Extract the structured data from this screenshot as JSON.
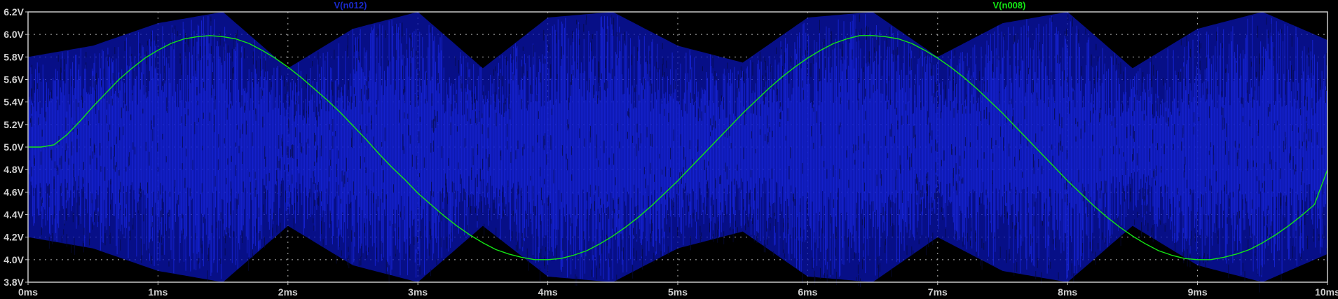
{
  "app": {
    "background_color": "#000000",
    "frame_color": "#c8c8c8",
    "grid_color": "#b4b4b4"
  },
  "chart_data": {
    "type": "line",
    "title": "",
    "xlabel": "",
    "ylabel": "",
    "x_unit": "ms",
    "y_unit": "V",
    "xlim": [
      0,
      10
    ],
    "ylim": [
      3.8,
      6.2
    ],
    "grid": true,
    "legend_placement": "top",
    "x_ticks": [
      0,
      1,
      2,
      3,
      4,
      5,
      6,
      7,
      8,
      9,
      10
    ],
    "x_tick_labels": [
      "0ms",
      "1ms",
      "2ms",
      "3ms",
      "4ms",
      "5ms",
      "6ms",
      "7ms",
      "8ms",
      "9ms",
      "10ms"
    ],
    "y_ticks": [
      3.8,
      4.0,
      4.2,
      4.4,
      4.6,
      4.8,
      5.0,
      5.2,
      5.4,
      5.6,
      5.8,
      6.0,
      6.2
    ],
    "y_tick_labels": [
      "3.8V",
      "4.0V",
      "4.2V",
      "4.4V",
      "4.6V",
      "4.8V",
      "5.0V",
      "5.2V",
      "5.4V",
      "5.6V",
      "5.8V",
      "6.0V",
      "6.2V"
    ],
    "series": [
      {
        "name": "V(n012)",
        "color": "#0a14b4",
        "label_color": "#1a2acc",
        "kind": "dense-oscillation",
        "envelope_ms": [
          0,
          0.5,
          1,
          1.5,
          2,
          2.5,
          3,
          3.5,
          4,
          4.5,
          5,
          5.5,
          6,
          6.5,
          7,
          7.5,
          8,
          8.5,
          9,
          9.5,
          10
        ],
        "envelope_max_v": [
          5.8,
          5.9,
          6.1,
          6.2,
          5.7,
          6.05,
          6.2,
          5.7,
          6.15,
          6.2,
          5.9,
          5.75,
          6.15,
          6.2,
          5.8,
          6.1,
          6.2,
          5.7,
          6.05,
          6.2,
          5.95
        ],
        "envelope_min_v": [
          4.2,
          4.1,
          3.9,
          3.8,
          4.3,
          3.95,
          3.8,
          4.3,
          3.85,
          3.8,
          4.1,
          4.25,
          3.85,
          3.8,
          4.2,
          3.9,
          3.8,
          4.3,
          3.95,
          3.8,
          4.05
        ]
      },
      {
        "name": "V(n008)",
        "color": "#14e614",
        "label_color": "#14e614",
        "kind": "line",
        "x": [
          0,
          0.1,
          0.2,
          0.3,
          0.4,
          0.5,
          0.6,
          0.7,
          0.8,
          0.9,
          1.0,
          1.1,
          1.2,
          1.3,
          1.4,
          1.5,
          1.6,
          1.7,
          1.8,
          1.9,
          2.0,
          2.1,
          2.2,
          2.3,
          2.4,
          2.5,
          2.6,
          2.7,
          2.8,
          2.9,
          3.0,
          3.1,
          3.2,
          3.3,
          3.4,
          3.5,
          3.6,
          3.7,
          3.8,
          3.9,
          4.0,
          4.1,
          4.2,
          4.3,
          4.4,
          4.5,
          4.6,
          4.7,
          4.8,
          4.9,
          5.0,
          5.1,
          5.2,
          5.3,
          5.4,
          5.5,
          5.6,
          5.7,
          5.8,
          5.9,
          6.0,
          6.1,
          6.2,
          6.3,
          6.4,
          6.5,
          6.6,
          6.7,
          6.8,
          6.9,
          7.0,
          7.1,
          7.2,
          7.3,
          7.4,
          7.5,
          7.6,
          7.7,
          7.8,
          7.9,
          8.0,
          8.1,
          8.2,
          8.3,
          8.4,
          8.5,
          8.6,
          8.7,
          8.8,
          8.9,
          9.0,
          9.1,
          9.2,
          9.3,
          9.4,
          9.5,
          9.6,
          9.7,
          9.8,
          9.9,
          10.0
        ],
        "y": [
          5.0,
          5.0,
          5.02,
          5.11,
          5.23,
          5.36,
          5.48,
          5.6,
          5.7,
          5.79,
          5.86,
          5.92,
          5.96,
          5.98,
          5.99,
          5.98,
          5.96,
          5.92,
          5.86,
          5.79,
          5.71,
          5.62,
          5.52,
          5.42,
          5.31,
          5.19,
          5.07,
          4.94,
          4.82,
          4.71,
          4.59,
          4.49,
          4.39,
          4.3,
          4.22,
          4.15,
          4.09,
          4.05,
          4.02,
          4.0,
          4.0,
          4.01,
          4.04,
          4.08,
          4.14,
          4.21,
          4.29,
          4.38,
          4.48,
          4.59,
          4.7,
          4.82,
          4.94,
          5.06,
          5.18,
          5.3,
          5.41,
          5.52,
          5.62,
          5.71,
          5.79,
          5.86,
          5.92,
          5.96,
          5.99,
          5.99,
          5.98,
          5.96,
          5.92,
          5.86,
          5.79,
          5.71,
          5.62,
          5.52,
          5.41,
          5.3,
          5.18,
          5.06,
          4.94,
          4.82,
          4.7,
          4.59,
          4.48,
          4.38,
          4.29,
          4.21,
          4.14,
          4.08,
          4.04,
          4.01,
          4.0,
          4.0,
          4.02,
          4.05,
          4.09,
          4.15,
          4.22,
          4.3,
          4.39,
          4.49,
          4.8
        ]
      }
    ]
  }
}
